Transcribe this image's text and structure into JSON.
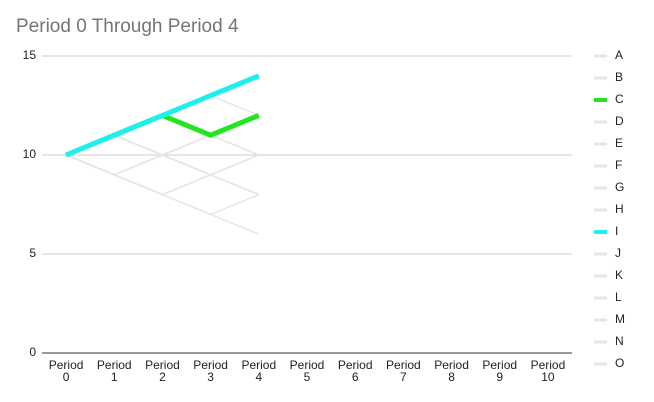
{
  "chart_data": {
    "type": "line",
    "title": "Period 0 Through Period 4",
    "categories": [
      "Period 0",
      "Period 1",
      "Period 2",
      "Period 3",
      "Period 4",
      "Period 5",
      "Period 6",
      "Period 7",
      "Period 8",
      "Period 9",
      "Period 10"
    ],
    "ylim": [
      0,
      15
    ],
    "yticks": [
      0,
      5,
      10,
      15
    ],
    "grid": true,
    "legend": "right",
    "series": [
      {
        "name": "A",
        "color": "#e6e6e6",
        "values": [
          10,
          11,
          12,
          13,
          12,
          null,
          null,
          null,
          null,
          null,
          null
        ]
      },
      {
        "name": "B",
        "color": "#e6e6e6",
        "values": [
          10,
          11,
          12,
          11,
          10,
          null,
          null,
          null,
          null,
          null,
          null
        ]
      },
      {
        "name": "C",
        "color": "#22e522",
        "emphasis": true,
        "values": [
          10,
          11,
          12,
          11,
          12,
          null,
          null,
          null,
          null,
          null,
          null
        ]
      },
      {
        "name": "D",
        "color": "#e6e6e6",
        "values": [
          10,
          11,
          10,
          11,
          12,
          null,
          null,
          null,
          null,
          null,
          null
        ]
      },
      {
        "name": "E",
        "color": "#e6e6e6",
        "values": [
          10,
          11,
          10,
          9,
          10,
          null,
          null,
          null,
          null,
          null,
          null
        ]
      },
      {
        "name": "F",
        "color": "#e6e6e6",
        "values": [
          10,
          9,
          10,
          11,
          10,
          null,
          null,
          null,
          null,
          null,
          null
        ]
      },
      {
        "name": "G",
        "color": "#e6e6e6",
        "values": [
          10,
          9,
          10,
          9,
          8,
          null,
          null,
          null,
          null,
          null,
          null
        ]
      },
      {
        "name": "H",
        "color": "#e6e6e6",
        "values": [
          10,
          9,
          8,
          9,
          10,
          null,
          null,
          null,
          null,
          null,
          null
        ]
      },
      {
        "name": "I",
        "color": "#1ef0f0",
        "emphasis": true,
        "values": [
          10,
          11,
          12,
          13,
          14,
          null,
          null,
          null,
          null,
          null,
          null
        ]
      },
      {
        "name": "J",
        "color": "#e6e6e6",
        "values": [
          10,
          9,
          8,
          7,
          6,
          null,
          null,
          null,
          null,
          null,
          null
        ]
      },
      {
        "name": "K",
        "color": "#e6e6e6",
        "values": [
          10,
          9,
          8,
          7,
          8,
          null,
          null,
          null,
          null,
          null,
          null
        ]
      },
      {
        "name": "L",
        "color": "#e6e6e6",
        "values": [
          10,
          9,
          8,
          9,
          8,
          null,
          null,
          null,
          null,
          null,
          null
        ]
      },
      {
        "name": "M",
        "color": "#e6e6e6",
        "values": [
          10,
          9,
          10,
          9,
          10,
          null,
          null,
          null,
          null,
          null,
          null
        ]
      },
      {
        "name": "N",
        "color": "#e6e6e6",
        "values": [
          10,
          11,
          10,
          9,
          8,
          null,
          null,
          null,
          null,
          null,
          null
        ]
      },
      {
        "name": "O",
        "color": "#e6e6e6",
        "values": [
          10,
          11,
          10,
          11,
          10,
          null,
          null,
          null,
          null,
          null,
          null
        ]
      }
    ]
  }
}
